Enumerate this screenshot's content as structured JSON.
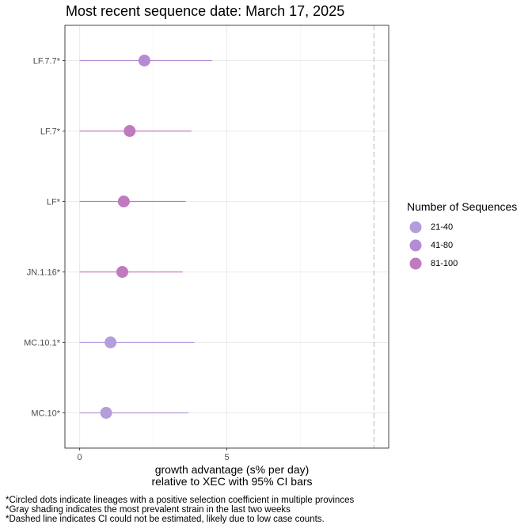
{
  "title": "Most recent sequence date: March 17, 2025",
  "chart_data": {
    "type": "scatter",
    "subtype": "dot-and-interval",
    "title": "Most recent sequence date: March 17, 2025",
    "xlabel_lines": [
      "growth advantage (s% per day)",
      "relative to  XEC  with 95% CI bars"
    ],
    "ylabel": "",
    "xlim": [
      -0.5,
      10.5
    ],
    "x_ticks": [
      0,
      5
    ],
    "dashed_reference_x": 10.0,
    "grid": true,
    "legend_position": "right",
    "legend_title": "Number of Sequences",
    "legend": [
      {
        "label": "21-40",
        "color": "#b39ddb"
      },
      {
        "label": "41-80",
        "color": "#b58bd4"
      },
      {
        "label": "81-100",
        "color": "#c07ac0"
      }
    ],
    "points": [
      {
        "lineage": "LF.7.7*",
        "x": 2.2,
        "ci_low": 0.0,
        "ci_high": 4.5,
        "group": "41-80"
      },
      {
        "lineage": "LF.7*",
        "x": 1.7,
        "ci_low": 0.0,
        "ci_high": 3.8,
        "group": "81-100"
      },
      {
        "lineage": "LF*",
        "x": 1.5,
        "ci_low": 0.0,
        "ci_high": 3.6,
        "group": "81-100"
      },
      {
        "lineage": "JN.1.16*",
        "x": 1.45,
        "ci_low": 0.0,
        "ci_high": 3.5,
        "group": "81-100"
      },
      {
        "lineage": "MC.10.1*",
        "x": 1.05,
        "ci_low": 0.0,
        "ci_high": 3.9,
        "group": "21-40"
      },
      {
        "lineage": "MC.10*",
        "x": 0.9,
        "ci_low": 0.0,
        "ci_high": 3.7,
        "group": "21-40"
      }
    ]
  },
  "footnotes": [
    "*Circled dots indicate lineages with a positive selection coefficient in multiple provinces",
    "*Gray shading indicates the most prevalent strain in the last two weeks",
    "*Dashed line indicates CI could not be estimated, likely due to low case counts."
  ]
}
